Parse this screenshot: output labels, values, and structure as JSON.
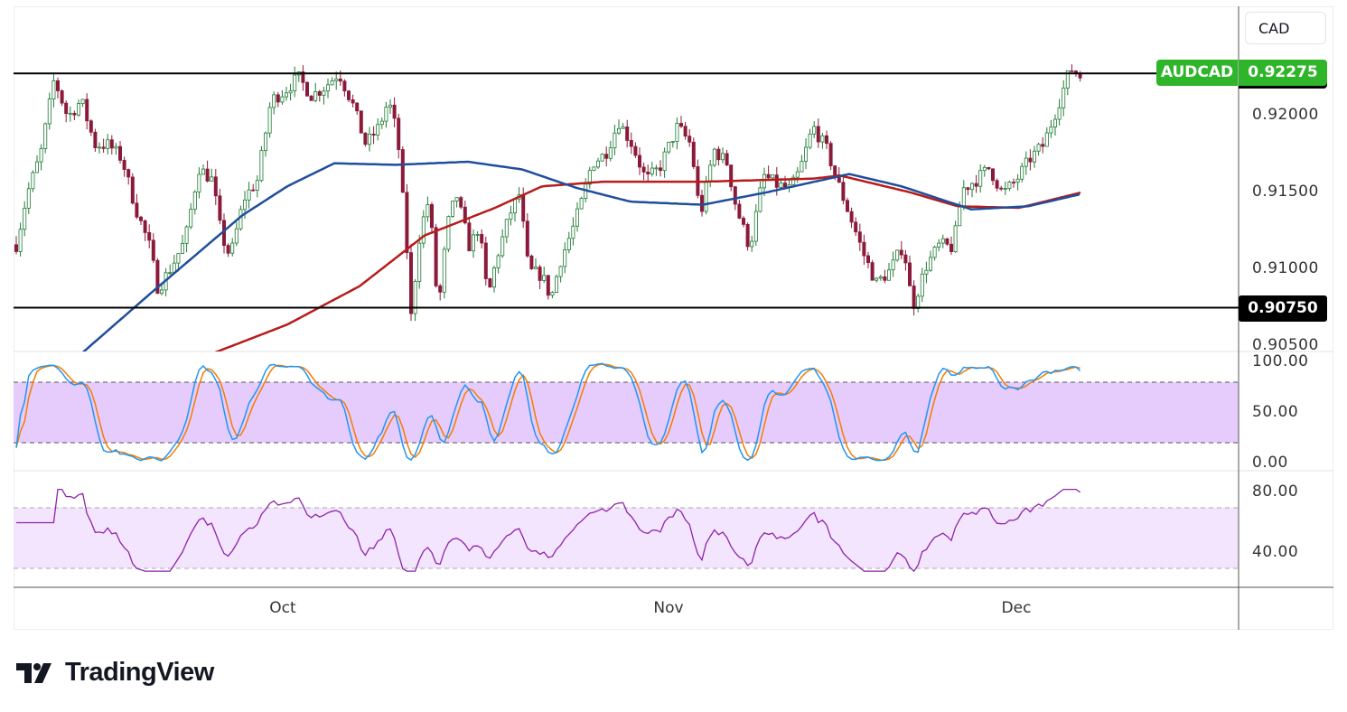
{
  "currency": "CAD",
  "symbol_tag": "AUDCAD",
  "last_price": "0.92275",
  "support_price": "0.90750",
  "price_axis": [
    "0.92000",
    "0.91500",
    "0.91000",
    "0.90500"
  ],
  "stoch_axis": [
    "100.00",
    "50.00",
    "0.00"
  ],
  "rsi_axis": [
    "80.00",
    "40.00"
  ],
  "time_axis": [
    "Oct",
    "Nov",
    "Dec"
  ],
  "brand": "TradingView",
  "colors": {
    "up": "#1e7b34",
    "down": "#8b1a3a",
    "ma_fast": "#1f4e9c",
    "ma_slow": "#b71c1c",
    "stoch_k": "#2196f3",
    "stoch_d": "#f57c00",
    "rsi": "#8e24aa",
    "tag": "#2fb52a"
  },
  "chart_data": {
    "type": "candlestick",
    "title": "AUDCAD",
    "ylim": [
      0.9045,
      0.9255
    ],
    "levels": [
      0.92275,
      0.9075
    ],
    "price_path": [
      [
        0,
        0.9116
      ],
      [
        12,
        0.9149
      ],
      [
        27,
        0.9175
      ],
      [
        42,
        0.9224
      ],
      [
        57,
        0.9199
      ],
      [
        72,
        0.921
      ],
      [
        87,
        0.9181
      ],
      [
        102,
        0.9181
      ],
      [
        117,
        0.9172
      ],
      [
        132,
        0.914
      ],
      [
        147,
        0.9116
      ],
      [
        157,
        0.9087
      ],
      [
        172,
        0.9102
      ],
      [
        187,
        0.9119
      ],
      [
        202,
        0.9166
      ],
      [
        217,
        0.9158
      ],
      [
        227,
        0.9122
      ],
      [
        237,
        0.9108
      ],
      [
        252,
        0.9146
      ],
      [
        267,
        0.9158
      ],
      [
        282,
        0.921
      ],
      [
        297,
        0.9216
      ],
      [
        312,
        0.9225
      ],
      [
        327,
        0.9213
      ],
      [
        342,
        0.9219
      ],
      [
        357,
        0.9228
      ],
      [
        372,
        0.9208
      ],
      [
        387,
        0.9181
      ],
      [
        402,
        0.9193
      ],
      [
        412,
        0.921
      ],
      [
        422,
        0.9187
      ],
      [
        432,
        0.9116
      ],
      [
        437,
        0.9069
      ],
      [
        447,
        0.9125
      ],
      [
        457,
        0.9146
      ],
      [
        467,
        0.9072
      ],
      [
        477,
        0.9128
      ],
      [
        487,
        0.9149
      ],
      [
        502,
        0.9114
      ],
      [
        512,
        0.9128
      ],
      [
        522,
        0.9081
      ],
      [
        532,
        0.9108
      ],
      [
        547,
        0.9137
      ],
      [
        557,
        0.9149
      ],
      [
        567,
        0.9099
      ],
      [
        582,
        0.9096
      ],
      [
        592,
        0.9081
      ],
      [
        602,
        0.9105
      ],
      [
        617,
        0.9128
      ],
      [
        627,
        0.9146
      ],
      [
        637,
        0.9169
      ],
      [
        652,
        0.9175
      ],
      [
        667,
        0.9196
      ],
      [
        682,
        0.9181
      ],
      [
        697,
        0.9158
      ],
      [
        712,
        0.9166
      ],
      [
        732,
        0.9193
      ],
      [
        747,
        0.9181
      ],
      [
        757,
        0.9134
      ],
      [
        772,
        0.9178
      ],
      [
        787,
        0.9169
      ],
      [
        797,
        0.914
      ],
      [
        812,
        0.9114
      ],
      [
        827,
        0.9161
      ],
      [
        842,
        0.9155
      ],
      [
        857,
        0.9152
      ],
      [
        867,
        0.9164
      ],
      [
        882,
        0.9193
      ],
      [
        897,
        0.9178
      ],
      [
        912,
        0.9152
      ],
      [
        927,
        0.9128
      ],
      [
        937,
        0.9111
      ],
      [
        952,
        0.9091
      ],
      [
        967,
        0.9099
      ],
      [
        982,
        0.9116
      ],
      [
        992,
        0.9075
      ],
      [
        1007,
        0.9102
      ],
      [
        1022,
        0.9116
      ],
      [
        1037,
        0.9114
      ],
      [
        1047,
        0.9152
      ],
      [
        1062,
        0.9158
      ],
      [
        1077,
        0.9166
      ],
      [
        1092,
        0.9149
      ],
      [
        1107,
        0.9158
      ],
      [
        1122,
        0.9172
      ],
      [
        1137,
        0.9181
      ],
      [
        1152,
        0.9205
      ],
      [
        1167,
        0.9231
      ],
      [
        1179,
        0.9225
      ]
    ],
    "ma_fast_path": [
      [
        70,
        0.9044
      ],
      [
        150,
        0.9085
      ],
      [
        250,
        0.9135
      ],
      [
        300,
        0.9154
      ],
      [
        352,
        0.9169
      ],
      [
        420,
        0.9168
      ],
      [
        500,
        0.917
      ],
      [
        560,
        0.9165
      ],
      [
        620,
        0.9153
      ],
      [
        680,
        0.9144
      ],
      [
        760,
        0.9142
      ],
      [
        830,
        0.915
      ],
      [
        922,
        0.9162
      ],
      [
        980,
        0.9154
      ],
      [
        1057,
        0.9139
      ],
      [
        1120,
        0.9141
      ],
      [
        1179,
        0.9149
      ]
    ],
    "ma_slow_path": [
      [
        212,
        0.9044
      ],
      [
        300,
        0.9064
      ],
      [
        380,
        0.9089
      ],
      [
        452,
        0.9122
      ],
      [
        530,
        0.914
      ],
      [
        582,
        0.9154
      ],
      [
        650,
        0.9157
      ],
      [
        760,
        0.9157
      ],
      [
        882,
        0.9159
      ],
      [
        912,
        0.9161
      ],
      [
        990,
        0.915
      ],
      [
        1042,
        0.9141
      ],
      [
        1110,
        0.914
      ],
      [
        1179,
        0.915
      ]
    ],
    "stoch": {
      "upper": 80,
      "lower": 20,
      "ylim": [
        0,
        100
      ]
    },
    "rsi": {
      "upper": 70,
      "lower": 30,
      "ylim": [
        25,
        85
      ]
    }
  }
}
